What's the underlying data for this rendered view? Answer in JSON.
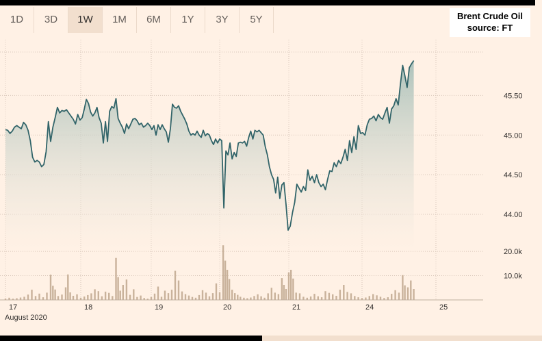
{
  "tabs": [
    {
      "label": "1D",
      "active": false
    },
    {
      "label": "3D",
      "active": false
    },
    {
      "label": "1W",
      "active": true
    },
    {
      "label": "1M",
      "active": false
    },
    {
      "label": "6M",
      "active": false
    },
    {
      "label": "1Y",
      "active": false
    },
    {
      "label": "3Y",
      "active": false
    },
    {
      "label": "5Y",
      "active": false
    }
  ],
  "legend": {
    "line1": "Brent Crude Oil",
    "line2": "source: FT"
  },
  "colors": {
    "line": "#316469",
    "area_top": "#a9c0b9",
    "volume": "#c9b29b",
    "grid": "#d9c8ba",
    "background": "#fff1e5"
  },
  "chart_data": {
    "type": "line",
    "ylim": [
      43.55,
      46.1
    ],
    "y_ticks": [
      {
        "value": 45.5,
        "label": "45.50"
      },
      {
        "value": 45.0,
        "label": "45.00"
      },
      {
        "value": 44.5,
        "label": "44.50"
      },
      {
        "value": 44.0,
        "label": "44.00"
      }
    ],
    "x_ticks": [
      {
        "label": "17",
        "sub": "August 2020"
      },
      {
        "label": "18"
      },
      {
        "label": "19"
      },
      {
        "label": "20"
      },
      {
        "label": "21"
      },
      {
        "label": "24"
      },
      {
        "label": "25"
      }
    ],
    "price_series": [
      [
        17.0,
        45.07
      ],
      [
        17.03,
        45.06
      ],
      [
        17.06,
        45.02
      ],
      [
        17.09,
        45.05
      ],
      [
        17.12,
        45.1
      ],
      [
        17.15,
        45.12
      ],
      [
        17.18,
        45.1
      ],
      [
        17.21,
        45.08
      ],
      [
        17.24,
        45.16
      ],
      [
        17.27,
        45.13
      ],
      [
        17.3,
        45.06
      ],
      [
        17.33,
        44.93
      ],
      [
        17.36,
        44.72
      ],
      [
        17.39,
        44.66
      ],
      [
        17.42,
        44.68
      ],
      [
        17.45,
        44.66
      ],
      [
        17.48,
        44.6
      ],
      [
        17.51,
        44.63
      ],
      [
        17.54,
        44.79
      ],
      [
        17.57,
        45.17
      ],
      [
        17.6,
        44.92
      ],
      [
        17.63,
        45.1
      ],
      [
        17.66,
        45.22
      ],
      [
        17.69,
        45.35
      ],
      [
        17.72,
        45.28
      ],
      [
        17.75,
        45.31
      ],
      [
        17.78,
        45.3
      ],
      [
        17.81,
        45.32
      ],
      [
        17.84,
        45.28
      ],
      [
        17.87,
        45.24
      ],
      [
        17.9,
        45.2
      ],
      [
        17.93,
        45.14
      ],
      [
        17.96,
        45.26
      ],
      [
        17.99,
        45.19
      ],
      [
        18.02,
        45.22
      ],
      [
        18.05,
        45.33
      ],
      [
        18.08,
        45.45
      ],
      [
        18.11,
        45.4
      ],
      [
        18.14,
        45.29
      ],
      [
        18.17,
        45.24
      ],
      [
        18.2,
        45.28
      ],
      [
        18.23,
        45.35
      ],
      [
        18.26,
        45.22
      ],
      [
        18.29,
        45.15
      ],
      [
        18.32,
        44.9
      ],
      [
        18.35,
        45.17
      ],
      [
        18.38,
        44.92
      ],
      [
        18.41,
        45.3
      ],
      [
        18.44,
        45.36
      ],
      [
        18.47,
        45.34
      ],
      [
        18.5,
        45.46
      ],
      [
        18.53,
        45.21
      ],
      [
        18.56,
        45.15
      ],
      [
        18.59,
        45.1
      ],
      [
        18.62,
        45.02
      ],
      [
        18.65,
        45.14
      ],
      [
        18.68,
        45.08
      ],
      [
        18.71,
        45.14
      ],
      [
        18.74,
        45.2
      ],
      [
        18.77,
        45.21
      ],
      [
        18.8,
        45.18
      ],
      [
        18.83,
        45.13
      ],
      [
        18.86,
        45.15
      ],
      [
        18.89,
        45.1
      ],
      [
        18.92,
        45.12
      ],
      [
        18.95,
        45.15
      ],
      [
        18.98,
        45.12
      ],
      [
        19.01,
        45.07
      ],
      [
        19.04,
        45.12
      ],
      [
        19.07,
        45.0
      ],
      [
        19.1,
        45.13
      ],
      [
        19.13,
        45.07
      ],
      [
        19.16,
        45.13
      ],
      [
        19.19,
        45.08
      ],
      [
        19.22,
        45.04
      ],
      [
        19.25,
        44.91
      ],
      [
        19.28,
        45.08
      ],
      [
        19.31,
        45.39
      ],
      [
        19.34,
        45.35
      ],
      [
        19.37,
        45.34
      ],
      [
        19.4,
        45.37
      ],
      [
        19.43,
        45.3
      ],
      [
        19.46,
        45.25
      ],
      [
        19.49,
        45.2
      ],
      [
        19.52,
        45.14
      ],
      [
        19.55,
        45.05
      ],
      [
        19.58,
        45.0
      ],
      [
        19.61,
        45.02
      ],
      [
        19.64,
        45.0
      ],
      [
        19.67,
        45.05
      ],
      [
        19.7,
        45.0
      ],
      [
        19.73,
        44.97
      ],
      [
        19.76,
        45.06
      ],
      [
        19.79,
        44.99
      ],
      [
        19.82,
        45.02
      ],
      [
        19.85,
        45.0
      ],
      [
        19.88,
        44.93
      ],
      [
        19.91,
        44.88
      ],
      [
        19.94,
        44.95
      ],
      [
        19.97,
        44.9
      ],
      [
        20.0,
        44.95
      ],
      [
        20.03,
        44.93
      ],
      [
        20.06,
        44.08
      ],
      [
        20.09,
        44.8
      ],
      [
        20.12,
        44.75
      ],
      [
        20.15,
        44.9
      ],
      [
        20.18,
        44.7
      ],
      [
        20.21,
        44.78
      ],
      [
        20.24,
        44.73
      ],
      [
        20.27,
        44.9
      ],
      [
        20.3,
        44.91
      ],
      [
        20.33,
        44.9
      ],
      [
        20.36,
        44.92
      ],
      [
        20.39,
        44.86
      ],
      [
        20.42,
        44.97
      ],
      [
        20.45,
        45.05
      ],
      [
        20.48,
        44.95
      ],
      [
        20.51,
        45.06
      ],
      [
        20.54,
        45.04
      ],
      [
        20.57,
        45.06
      ],
      [
        20.6,
        45.03
      ],
      [
        20.63,
        45.0
      ],
      [
        20.66,
        44.85
      ],
      [
        20.69,
        44.75
      ],
      [
        20.72,
        44.6
      ],
      [
        20.75,
        44.5
      ],
      [
        20.78,
        44.44
      ],
      [
        20.81,
        44.27
      ],
      [
        20.84,
        44.47
      ],
      [
        20.87,
        44.2
      ],
      [
        20.9,
        44.37
      ],
      [
        20.93,
        44.4
      ],
      [
        20.96,
        44.12
      ],
      [
        20.99,
        43.8
      ],
      [
        21.02,
        43.85
      ],
      [
        21.05,
        44.02
      ],
      [
        21.08,
        44.15
      ],
      [
        21.11,
        44.38
      ],
      [
        21.14,
        44.33
      ],
      [
        21.17,
        44.28
      ],
      [
        21.2,
        44.35
      ],
      [
        21.23,
        44.3
      ],
      [
        21.26,
        44.56
      ],
      [
        21.29,
        44.43
      ],
      [
        21.32,
        44.48
      ],
      [
        21.35,
        44.4
      ],
      [
        21.38,
        44.5
      ],
      [
        21.41,
        44.4
      ],
      [
        21.44,
        44.35
      ],
      [
        21.47,
        44.38
      ],
      [
        21.5,
        44.31
      ],
      [
        21.53,
        44.44
      ],
      [
        21.56,
        44.55
      ],
      [
        21.59,
        44.54
      ],
      [
        21.62,
        44.65
      ],
      [
        21.65,
        44.6
      ],
      [
        21.68,
        44.68
      ],
      [
        21.71,
        44.64
      ],
      [
        21.74,
        44.72
      ],
      [
        21.77,
        44.82
      ],
      [
        21.8,
        44.68
      ],
      [
        21.83,
        44.93
      ],
      [
        21.86,
        44.78
      ],
      [
        21.89,
        44.98
      ],
      [
        21.92,
        44.82
      ],
      [
        21.95,
        45.12
      ],
      [
        21.98,
        45.02
      ],
      [
        22.01,
        45.03
      ],
      [
        22.04,
        45.0
      ],
      [
        22.07,
        45.13
      ],
      [
        22.1,
        45.2
      ],
      [
        22.13,
        45.21
      ],
      [
        22.16,
        45.24
      ],
      [
        22.19,
        45.18
      ],
      [
        22.22,
        45.26
      ],
      [
        22.25,
        45.22
      ],
      [
        22.28,
        45.2
      ],
      [
        22.31,
        45.28
      ],
      [
        22.34,
        45.35
      ],
      [
        22.37,
        45.15
      ],
      [
        22.4,
        45.33
      ],
      [
        22.43,
        45.37
      ],
      [
        22.46,
        45.46
      ],
      [
        22.49,
        45.38
      ],
      [
        22.52,
        45.65
      ],
      [
        22.55,
        45.88
      ],
      [
        22.58,
        45.75
      ],
      [
        22.61,
        45.6
      ],
      [
        22.64,
        45.85
      ],
      [
        22.67,
        45.9
      ],
      [
        22.7,
        45.94
      ]
    ],
    "volume_ylim": [
      0,
      22000
    ],
    "volume_ticks": [
      {
        "value": 20000,
        "label": "20.0k"
      },
      {
        "value": 10000,
        "label": "10.0k"
      }
    ],
    "volume_series": [
      [
        17.0,
        600
      ],
      [
        17.05,
        900
      ],
      [
        17.1,
        500
      ],
      [
        17.15,
        700
      ],
      [
        17.2,
        1000
      ],
      [
        17.25,
        1300
      ],
      [
        17.3,
        2200
      ],
      [
        17.35,
        4200
      ],
      [
        17.4,
        1600
      ],
      [
        17.45,
        2600
      ],
      [
        17.5,
        1100
      ],
      [
        17.55,
        3000
      ],
      [
        17.6,
        10400
      ],
      [
        17.63,
        5800
      ],
      [
        17.66,
        4300
      ],
      [
        17.7,
        1600
      ],
      [
        17.75,
        2200
      ],
      [
        17.8,
        5200
      ],
      [
        17.83,
        10500
      ],
      [
        17.86,
        3100
      ],
      [
        17.9,
        1700
      ],
      [
        17.95,
        2300
      ],
      [
        18.0,
        900
      ],
      [
        18.05,
        1400
      ],
      [
        18.1,
        2000
      ],
      [
        18.15,
        2700
      ],
      [
        18.2,
        4400
      ],
      [
        18.25,
        3600
      ],
      [
        18.3,
        1500
      ],
      [
        18.35,
        3400
      ],
      [
        18.4,
        2900
      ],
      [
        18.45,
        1600
      ],
      [
        18.5,
        17300
      ],
      [
        18.53,
        9400
      ],
      [
        18.56,
        3800
      ],
      [
        18.6,
        6200
      ],
      [
        18.65,
        8400
      ],
      [
        18.7,
        2100
      ],
      [
        18.75,
        4400
      ],
      [
        18.8,
        1200
      ],
      [
        18.85,
        1800
      ],
      [
        18.9,
        800
      ],
      [
        18.95,
        500
      ],
      [
        19.0,
        1200
      ],
      [
        19.05,
        2600
      ],
      [
        19.1,
        5500
      ],
      [
        19.15,
        1300
      ],
      [
        19.2,
        3800
      ],
      [
        19.25,
        2800
      ],
      [
        19.3,
        4200
      ],
      [
        19.35,
        12000
      ],
      [
        19.4,
        8000
      ],
      [
        19.45,
        3500
      ],
      [
        19.5,
        2400
      ],
      [
        19.55,
        1800
      ],
      [
        19.6,
        1200
      ],
      [
        19.65,
        900
      ],
      [
        19.7,
        2000
      ],
      [
        19.75,
        4000
      ],
      [
        19.8,
        3000
      ],
      [
        19.85,
        1500
      ],
      [
        19.9,
        2800
      ],
      [
        19.95,
        6800
      ],
      [
        20.0,
        3200
      ],
      [
        20.05,
        22500
      ],
      [
        20.08,
        16200
      ],
      [
        20.11,
        12400
      ],
      [
        20.14,
        8600
      ],
      [
        20.18,
        4200
      ],
      [
        20.22,
        2800
      ],
      [
        20.26,
        2100
      ],
      [
        20.3,
        1300
      ],
      [
        20.35,
        900
      ],
      [
        20.4,
        700
      ],
      [
        20.45,
        1000
      ],
      [
        20.5,
        1600
      ],
      [
        20.55,
        2300
      ],
      [
        20.6,
        1500
      ],
      [
        20.65,
        900
      ],
      [
        20.7,
        2700
      ],
      [
        20.75,
        5000
      ],
      [
        20.8,
        3000
      ],
      [
        20.85,
        2400
      ],
      [
        20.9,
        9000
      ],
      [
        20.93,
        6200
      ],
      [
        20.96,
        4500
      ],
      [
        21.0,
        11300
      ],
      [
        21.03,
        12400
      ],
      [
        21.06,
        8800
      ],
      [
        21.1,
        3000
      ],
      [
        21.15,
        2700
      ],
      [
        21.2,
        1300
      ],
      [
        21.25,
        900
      ],
      [
        21.3,
        1400
      ],
      [
        21.35,
        2500
      ],
      [
        21.4,
        1500
      ],
      [
        21.45,
        1100
      ],
      [
        21.5,
        3600
      ],
      [
        21.55,
        2900
      ],
      [
        21.6,
        2300
      ],
      [
        21.65,
        1700
      ],
      [
        21.7,
        4200
      ],
      [
        21.75,
        6200
      ],
      [
        21.8,
        3300
      ],
      [
        21.85,
        2700
      ],
      [
        21.9,
        1600
      ],
      [
        21.95,
        1100
      ],
      [
        22.0,
        800
      ],
      [
        22.05,
        1000
      ],
      [
        22.1,
        1600
      ],
      [
        22.15,
        2400
      ],
      [
        22.2,
        1900
      ],
      [
        22.25,
        1300
      ],
      [
        22.3,
        800
      ],
      [
        22.35,
        1100
      ],
      [
        22.4,
        2500
      ],
      [
        22.45,
        4000
      ],
      [
        22.5,
        3000
      ],
      [
        22.55,
        10200
      ],
      [
        22.58,
        6000
      ],
      [
        22.62,
        5200
      ],
      [
        22.66,
        8000
      ],
      [
        22.7,
        4500
      ]
    ]
  }
}
